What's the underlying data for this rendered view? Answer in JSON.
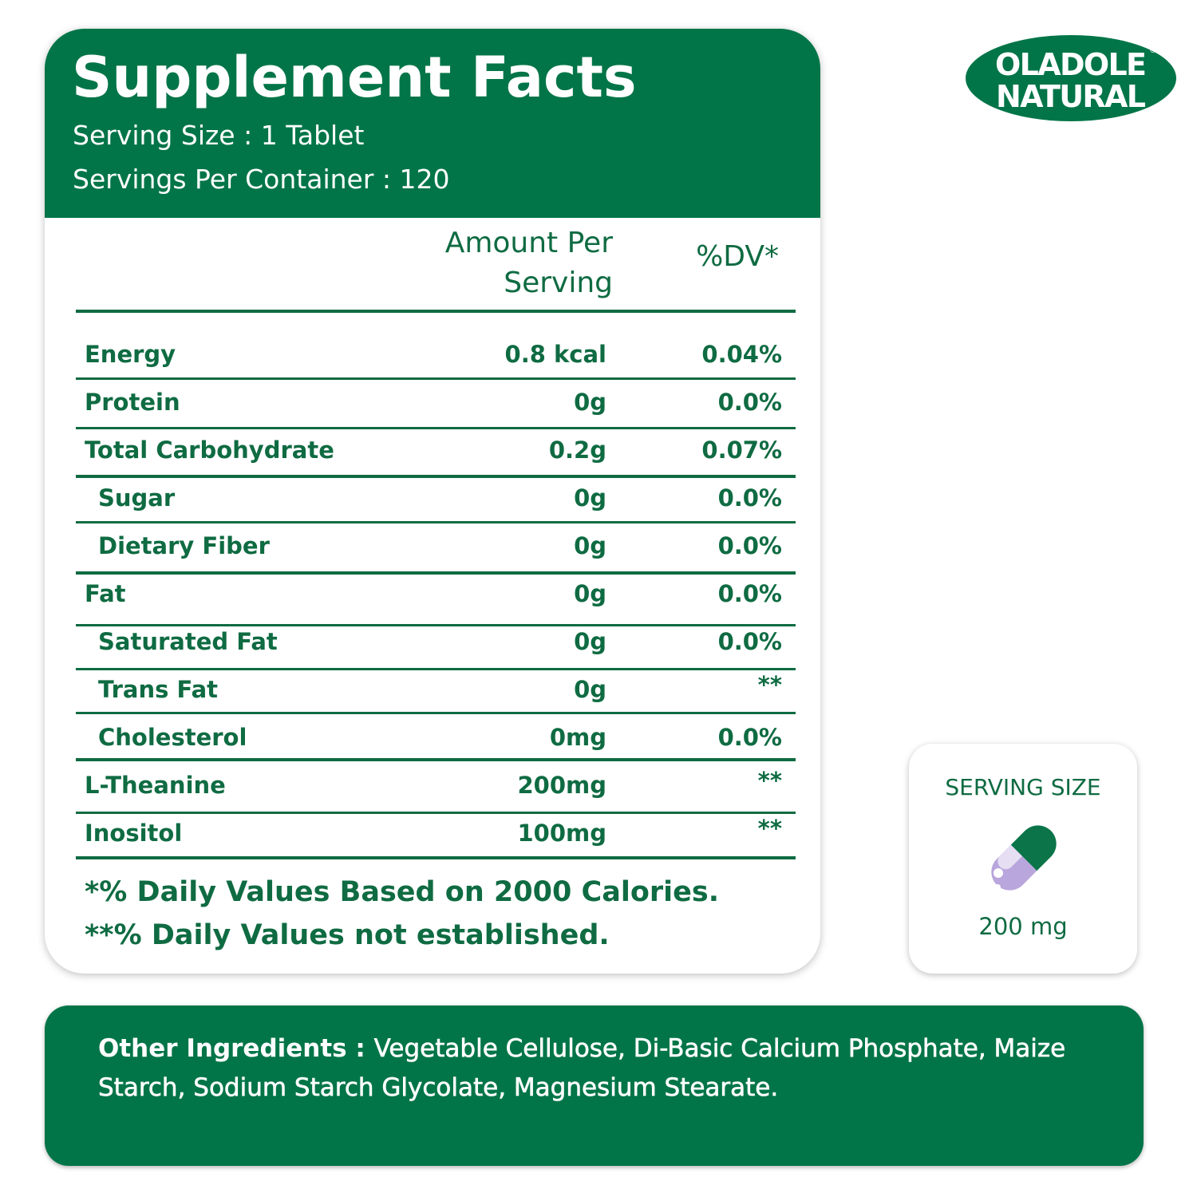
{
  "header": {
    "title": "Supplement Facts",
    "serving_size": "Serving Size : 1 Tablet",
    "servings_per_container": "Servings Per Container : 120"
  },
  "table": {
    "columns": [
      "Amount Per Serving",
      "%DV*"
    ],
    "rows": [
      [
        "Energy",
        "0.8 kcal",
        "0.04%"
      ],
      [
        "Protein",
        "0g",
        "0.0%"
      ],
      [
        "Total Carbohydrate",
        "0.2g",
        "0.07%"
      ],
      [
        "Sugar",
        "0g",
        "0.0%"
      ],
      [
        "Dietary Fiber",
        "0g",
        "0.0%"
      ],
      [
        "Fat",
        "0g",
        "0.0%"
      ],
      [
        "Saturated Fat",
        "0g",
        "0.0%"
      ],
      [
        "Trans Fat",
        "0g",
        "**"
      ],
      [
        "Cholesterol",
        "0mg",
        "0.0%"
      ],
      [
        "L-Theanine",
        "200mg",
        "**"
      ],
      [
        "Inositol",
        "100mg",
        "**"
      ]
    ]
  },
  "footnotes": [
    "*% Daily Values Based on 2000 Calories.",
    "**% Daily Values not established."
  ],
  "logo": {
    "line1": "OLADOLE",
    "line2": "NATURAL",
    "mark": "®"
  },
  "serving_box": {
    "title": "SERVING SIZE",
    "amount": "200 mg"
  },
  "ingredients": {
    "label": "Other Ingredients :",
    "text": "Vegetable Cellulose, Di-Basic Calcium Phosphate, Maize Starch, Sodium Starch Glycolate, Magnesium Stearate."
  }
}
